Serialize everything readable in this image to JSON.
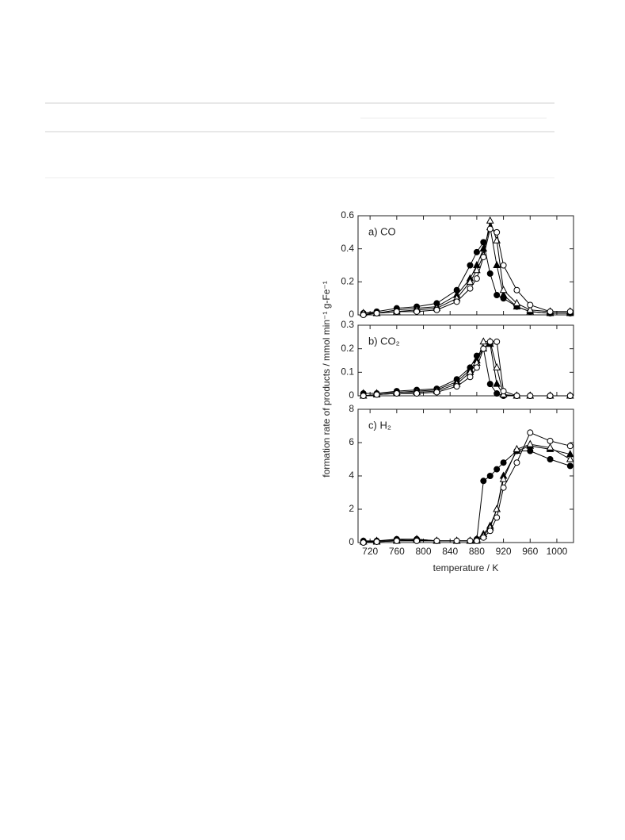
{
  "chart_data": [
    {
      "type": "line",
      "title": "a) CO",
      "x": [
        710,
        730,
        760,
        790,
        820,
        850,
        870,
        880,
        890,
        900,
        910,
        920,
        940,
        960,
        990,
        1020
      ],
      "xlim": [
        702,
        1025
      ],
      "xticks": [
        720,
        760,
        800,
        840,
        880,
        920,
        960,
        1000
      ],
      "xticklabels": false,
      "ylim": [
        0,
        0.6
      ],
      "yticks": [
        0,
        0.2,
        0.4,
        0.6
      ],
      "series": [
        {
          "color": "#000000",
          "marker": "circle",
          "fill": "#000000",
          "values": [
            0.01,
            0.02,
            0.04,
            0.05,
            0.07,
            0.15,
            0.3,
            0.38,
            0.44,
            0.25,
            0.12,
            0.1,
            0.05,
            0.02,
            0.01,
            0.01
          ]
        },
        {
          "color": "#000000",
          "marker": "triangle",
          "fill": "#000000",
          "values": [
            0.01,
            0.01,
            0.03,
            0.04,
            0.05,
            0.12,
            0.22,
            0.3,
            0.4,
            0.53,
            0.3,
            0.12,
            0.05,
            0.02,
            0.01,
            0.01
          ]
        },
        {
          "color": "#000000",
          "marker": "triangle",
          "fill": "#ffffff",
          "values": [
            0.01,
            0.01,
            0.02,
            0.03,
            0.04,
            0.1,
            0.2,
            0.27,
            0.36,
            0.57,
            0.45,
            0.15,
            0.07,
            0.03,
            0.02,
            0.02
          ]
        },
        {
          "color": "#000000",
          "marker": "circle",
          "fill": "#ffffff",
          "values": [
            0,
            0.01,
            0.02,
            0.02,
            0.03,
            0.08,
            0.16,
            0.22,
            0.35,
            0.52,
            0.5,
            0.3,
            0.15,
            0.06,
            0.02,
            0.02
          ]
        }
      ]
    },
    {
      "type": "line",
      "title": "b) CO₂",
      "ylabel": "formation rate of products / mmol min⁻¹ g-Fe⁻¹",
      "x": [
        710,
        730,
        760,
        790,
        820,
        850,
        870,
        880,
        890,
        900,
        910,
        920,
        940,
        960,
        990,
        1020
      ],
      "xlim": [
        702,
        1025
      ],
      "xticks": [
        720,
        760,
        800,
        840,
        880,
        920,
        960,
        1000
      ],
      "xticklabels": false,
      "ylim": [
        0,
        0.3
      ],
      "yticks": [
        0,
        0.1,
        0.2,
        0.3
      ],
      "series": [
        {
          "color": "#000000",
          "marker": "circle",
          "fill": "#000000",
          "values": [
            0.01,
            0.01,
            0.02,
            0.025,
            0.03,
            0.07,
            0.12,
            0.17,
            0.2,
            0.05,
            0.01,
            0,
            0,
            0,
            0,
            0
          ]
        },
        {
          "color": "#000000",
          "marker": "triangle",
          "fill": "#000000",
          "values": [
            0.01,
            0.01,
            0.015,
            0.02,
            0.025,
            0.06,
            0.11,
            0.15,
            0.2,
            0.22,
            0.05,
            0.005,
            0,
            0,
            0,
            0
          ]
        },
        {
          "color": "#000000",
          "marker": "triangle",
          "fill": "#ffffff",
          "values": [
            0,
            0.005,
            0.01,
            0.015,
            0.02,
            0.05,
            0.1,
            0.14,
            0.23,
            0.23,
            0.12,
            0.005,
            0,
            0,
            0,
            0
          ]
        },
        {
          "color": "#000000",
          "marker": "circle",
          "fill": "#ffffff",
          "values": [
            0,
            0.005,
            0.01,
            0.01,
            0.015,
            0.04,
            0.08,
            0.12,
            0.2,
            0.23,
            0.23,
            0.02,
            0,
            0,
            0,
            0
          ]
        }
      ]
    },
    {
      "type": "line",
      "title": "c) H₂",
      "xlabel": "temperature / K",
      "x": [
        710,
        730,
        760,
        790,
        820,
        850,
        870,
        880,
        890,
        900,
        910,
        920,
        940,
        960,
        990,
        1020
      ],
      "xlim": [
        702,
        1025
      ],
      "xticks": [
        720,
        760,
        800,
        840,
        880,
        920,
        960,
        1000
      ],
      "xticklabels": true,
      "ylim": [
        0,
        8
      ],
      "yticks": [
        0,
        2,
        4,
        6,
        8
      ],
      "series": [
        {
          "color": "#000000",
          "marker": "circle",
          "fill": "#000000",
          "values": [
            0.1,
            0.1,
            0.2,
            0.2,
            0.1,
            0.1,
            0.1,
            0.2,
            3.7,
            4.0,
            4.4,
            4.8,
            5.5,
            5.5,
            5.0,
            4.6
          ]
        },
        {
          "color": "#000000",
          "marker": "triangle",
          "fill": "#000000",
          "values": [
            0.05,
            0.1,
            0.15,
            0.2,
            0.1,
            0.1,
            0.1,
            0.2,
            0.5,
            1.0,
            2.0,
            4.0,
            5.5,
            5.8,
            5.6,
            5.3
          ]
        },
        {
          "color": "#000000",
          "marker": "triangle",
          "fill": "#ffffff",
          "values": [
            0.05,
            0.05,
            0.1,
            0.15,
            0.1,
            0.1,
            0.1,
            0.1,
            0.4,
            0.9,
            2.0,
            3.8,
            5.6,
            5.9,
            5.7,
            5.0
          ]
        },
        {
          "color": "#000000",
          "marker": "circle",
          "fill": "#ffffff",
          "values": [
            0,
            0.05,
            0.1,
            0.1,
            0.1,
            0.1,
            0.1,
            0.1,
            0.3,
            0.7,
            1.5,
            3.3,
            4.8,
            6.6,
            6.1,
            5.8
          ]
        }
      ]
    }
  ]
}
